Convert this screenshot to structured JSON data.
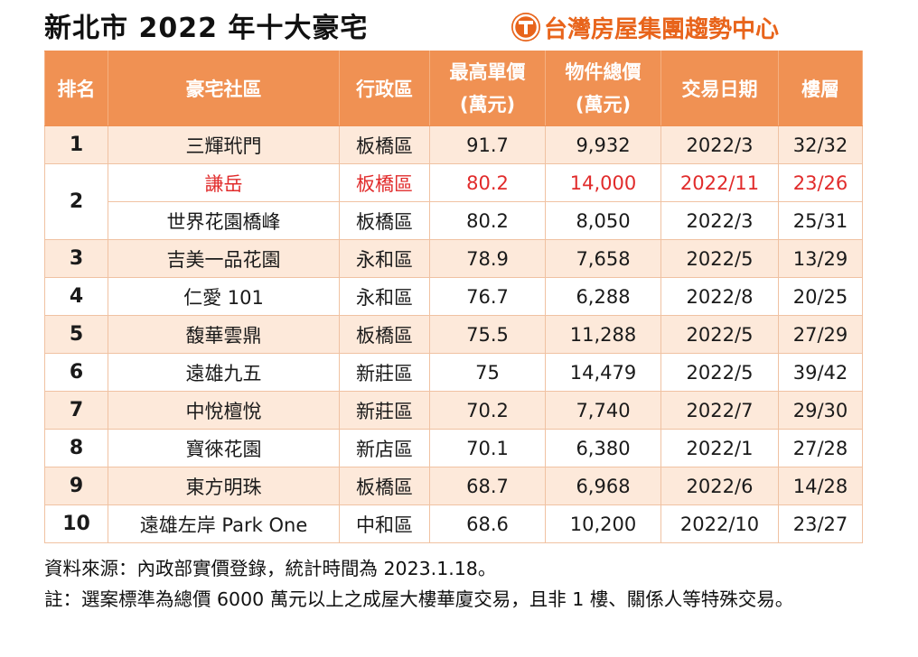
{
  "title": "新北市 2022 年十大豪宅",
  "brand": {
    "name": "台灣房屋集團趨勢中心",
    "color": "#e8641b",
    "icon": "t-logo-icon"
  },
  "table": {
    "headers": [
      {
        "line1": "排名",
        "line2": ""
      },
      {
        "line1": "豪宅社區",
        "line2": ""
      },
      {
        "line1": "行政區",
        "line2": ""
      },
      {
        "line1": "最高單價",
        "line2": "(萬元)"
      },
      {
        "line1": "物件總價",
        "line2": "(萬元)"
      },
      {
        "line1": "交易日期",
        "line2": ""
      },
      {
        "line1": "樓層",
        "line2": ""
      }
    ],
    "rows": [
      {
        "rank": "1",
        "name": "三輝玳門",
        "district": "板橋區",
        "unit_price": "91.7",
        "total_price": "9,932",
        "date": "2022/3",
        "floor": "32/32"
      },
      {
        "rank": "2",
        "name": "謙岳",
        "district": "板橋區",
        "unit_price": "80.2",
        "total_price": "14,000",
        "date": "2022/11",
        "floor": "23/26",
        "highlight": true
      },
      {
        "rank": "",
        "name": "世界花園橋峰",
        "district": "板橋區",
        "unit_price": "80.2",
        "total_price": "8,050",
        "date": "2022/3",
        "floor": "25/31"
      },
      {
        "rank": "3",
        "name": "吉美一品花園",
        "district": "永和區",
        "unit_price": "78.9",
        "total_price": "7,658",
        "date": "2022/5",
        "floor": "13/29"
      },
      {
        "rank": "4",
        "name": "仁愛 101",
        "district": "永和區",
        "unit_price": "76.7",
        "total_price": "6,288",
        "date": "2022/8",
        "floor": "20/25"
      },
      {
        "rank": "5",
        "name": "馥華雲鼎",
        "district": "板橋區",
        "unit_price": "75.5",
        "total_price": "11,288",
        "date": "2022/5",
        "floor": "27/29"
      },
      {
        "rank": "6",
        "name": "遠雄九五",
        "district": "新莊區",
        "unit_price": "75",
        "total_price": "14,479",
        "date": "2022/5",
        "floor": "39/42"
      },
      {
        "rank": "7",
        "name": "中悅檀悅",
        "district": "新莊區",
        "unit_price": "70.2",
        "total_price": "7,740",
        "date": "2022/7",
        "floor": "29/30"
      },
      {
        "rank": "8",
        "name": "寶徠花園",
        "district": "新店區",
        "unit_price": "70.1",
        "total_price": "6,380",
        "date": "2022/1",
        "floor": "27/28"
      },
      {
        "rank": "9",
        "name": "東方明珠",
        "district": "板橋區",
        "unit_price": "68.7",
        "total_price": "6,968",
        "date": "2022/6",
        "floor": "14/28"
      },
      {
        "rank": "10",
        "name": "遠雄左岸 Park One",
        "district": "中和區",
        "unit_price": "68.6",
        "total_price": "10,200",
        "date": "2022/10",
        "floor": "23/27"
      }
    ]
  },
  "notes": {
    "source": "資料來源：內政部實價登錄，統計時間為 2023.1.18。",
    "note": "註：選案標準為總價 6000 萬元以上之成屋大樓華廈交易，且非 1 樓、關係人等特殊交易。"
  },
  "colors": {
    "header_bg": "#f09153",
    "row_alt_bg": "#fde9da",
    "highlight_text": "#e12b2b"
  }
}
